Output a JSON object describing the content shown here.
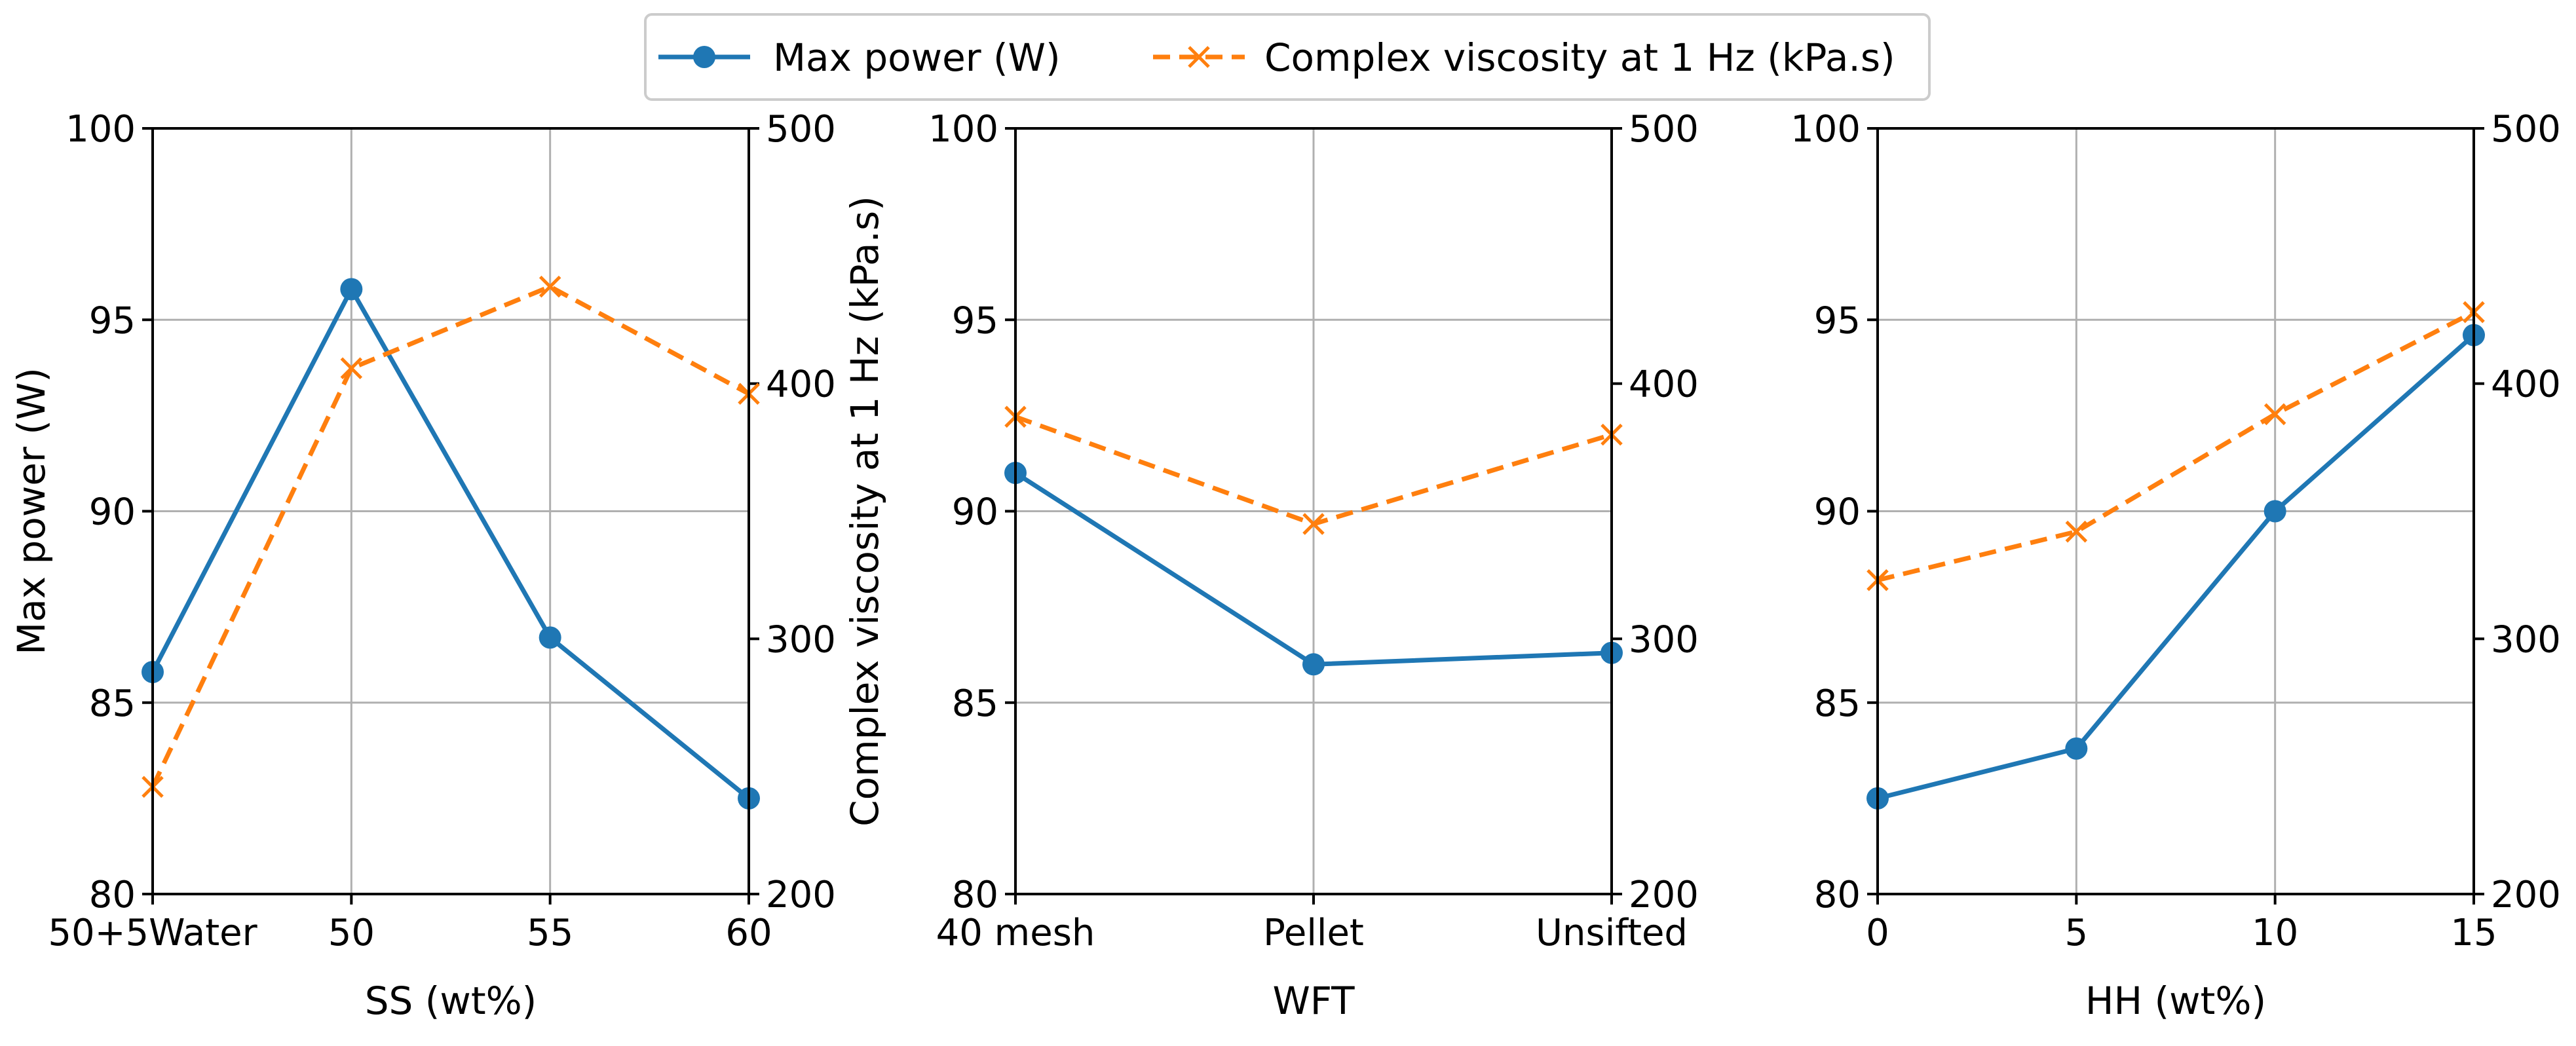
{
  "chart_data": {
    "type": "line",
    "legend": {
      "placement": "top-center",
      "entries": [
        {
          "name": "Max power (W)",
          "color": "#1f77b4",
          "marker": "circle",
          "linestyle": "solid"
        },
        {
          "name": "Complex viscosity at 1 Hz (kPa.s)",
          "color": "#ff7f0e",
          "marker": "x",
          "linestyle": "dashed"
        }
      ]
    },
    "y_left": {
      "label": "Max power (W)",
      "ylim": [
        80,
        100
      ],
      "ticks": [
        "80",
        "85",
        "90",
        "95",
        "100"
      ]
    },
    "y_right": {
      "label": "Complex viscosity at 1 Hz (kPa.s)",
      "ylim": [
        200,
        500
      ],
      "ticks": [
        "200",
        "300",
        "400",
        "500"
      ]
    },
    "grid": true,
    "panels": [
      {
        "xlabel": "SS (wt%)",
        "categories": [
          "50+5Water",
          "50",
          "55",
          "60"
        ],
        "series": [
          {
            "name": "Max power (W)",
            "axis": "left",
            "values": [
              85.8,
              95.8,
              86.7,
              82.5
            ]
          },
          {
            "name": "Complex viscosity at 1 Hz (kPa.s)",
            "axis": "right",
            "values": [
              242,
              406,
              438,
              396
            ]
          }
        ]
      },
      {
        "xlabel": "WFT",
        "categories": [
          "40 mesh",
          "Pellet",
          "Unsifted"
        ],
        "series": [
          {
            "name": "Max power (W)",
            "axis": "left",
            "values": [
              91.0,
              86.0,
              86.3
            ]
          },
          {
            "name": "Complex viscosity at 1 Hz (kPa.s)",
            "axis": "right",
            "values": [
              387,
              345,
              380
            ]
          }
        ]
      },
      {
        "xlabel": "HH (wt%)",
        "categories": [
          "0",
          "5",
          "10",
          "15"
        ],
        "series": [
          {
            "name": "Max power (W)",
            "axis": "left",
            "values": [
              82.5,
              83.8,
              90.0,
              94.6
            ]
          },
          {
            "name": "Complex viscosity at 1 Hz (kPa.s)",
            "axis": "right",
            "values": [
              323,
              342,
              388,
              428
            ]
          }
        ]
      }
    ]
  }
}
